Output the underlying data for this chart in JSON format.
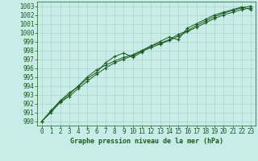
{
  "title": "Graphe pression niveau de la mer (hPa)",
  "background_color": "#c8ece8",
  "grid_color": "#a8d4cc",
  "line_color": "#1a5c1a",
  "marker_color": "#1a5c1a",
  "xlim": [
    -0.5,
    23.5
  ],
  "ylim": [
    989.5,
    1003.5
  ],
  "xticks": [
    0,
    1,
    2,
    3,
    4,
    5,
    6,
    7,
    8,
    9,
    10,
    11,
    12,
    13,
    14,
    15,
    16,
    17,
    18,
    19,
    20,
    21,
    22,
    23
  ],
  "yticks": [
    990,
    991,
    992,
    993,
    994,
    995,
    996,
    997,
    998,
    999,
    1000,
    1001,
    1002,
    1003
  ],
  "series": [
    [
      990.0,
      991.1,
      992.2,
      993.0,
      994.0,
      995.0,
      995.8,
      996.3,
      996.8,
      997.2,
      997.5,
      998.0,
      998.5,
      998.8,
      999.2,
      999.8,
      1000.2,
      1000.8,
      1001.3,
      1001.8,
      1002.2,
      1002.5,
      1002.8,
      1003.0
    ],
    [
      990.0,
      991.2,
      992.3,
      993.2,
      993.9,
      994.8,
      995.5,
      996.6,
      997.3,
      997.7,
      997.2,
      997.8,
      998.5,
      999.0,
      999.5,
      999.2,
      1000.5,
      1001.0,
      1001.5,
      1002.0,
      1002.3,
      1002.6,
      1002.9,
      1002.6
    ],
    [
      990.0,
      991.0,
      992.1,
      992.8,
      993.7,
      994.5,
      995.3,
      996.0,
      996.6,
      997.0,
      997.4,
      997.9,
      998.3,
      998.7,
      999.1,
      999.6,
      1000.1,
      1000.6,
      1001.1,
      1001.6,
      1002.0,
      1002.3,
      1002.6,
      1002.8
    ]
  ],
  "tick_fontsize": 5.5,
  "label_fontsize": 6.0
}
